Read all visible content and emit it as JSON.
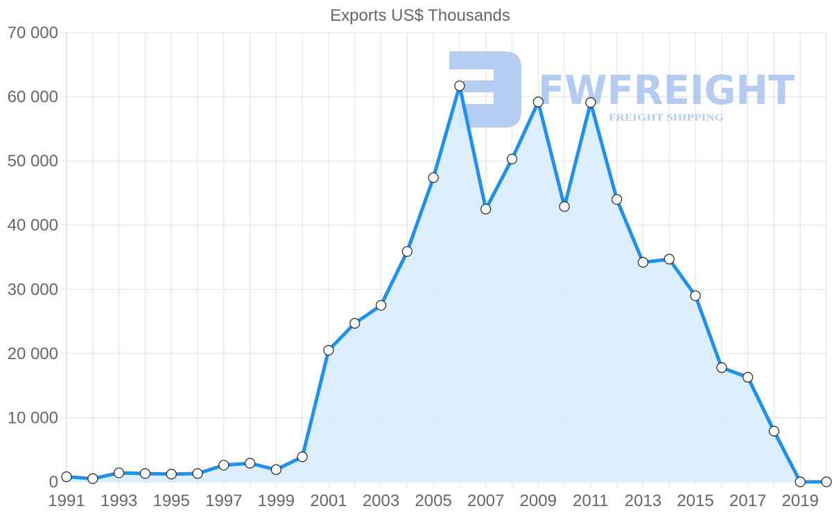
{
  "chart_data": {
    "type": "area",
    "title": "Exports US$ Thousands",
    "xlabel": "",
    "ylabel": "",
    "ylim": [
      0,
      70000
    ],
    "yticks": [
      0,
      10000,
      20000,
      30000,
      40000,
      50000,
      60000,
      70000
    ],
    "ytick_labels": [
      "0",
      "10 000",
      "20 000",
      "30 000",
      "40 000",
      "50 000",
      "60 000",
      "70 000"
    ],
    "xtick_labels": [
      "1991",
      "1993",
      "1995",
      "1997",
      "1999",
      "2001",
      "2003",
      "2005",
      "2007",
      "2009",
      "2011",
      "2013",
      "2015",
      "2017",
      "2019"
    ],
    "grid": true,
    "legend": null,
    "categories": [
      "1991",
      "1992",
      "1993",
      "1994",
      "1995",
      "1996",
      "1997",
      "1998",
      "1999",
      "2000",
      "2001",
      "2002",
      "2003",
      "2004",
      "2005",
      "2006",
      "2007",
      "2008",
      "2009",
      "2010",
      "2011",
      "2012",
      "2013",
      "2014",
      "2015",
      "2016",
      "2017",
      "2018",
      "2019",
      "2020"
    ],
    "series": [
      {
        "name": "Exports",
        "values": [
          800,
          500,
          1400,
          1300,
          1200,
          1300,
          2600,
          2900,
          1900,
          3900,
          20500,
          24700,
          27500,
          35900,
          47400,
          61700,
          42500,
          50300,
          59200,
          42900,
          59100,
          44000,
          34200,
          34700,
          29000,
          17800,
          16300,
          7900,
          0,
          0
        ]
      }
    ],
    "colors": {
      "line": "#1e90f0",
      "fill": "#d8ecfc",
      "marker_fill": "#ffffff",
      "marker_stroke": "#222222",
      "grid": "#e1e1e1",
      "text": "#666666"
    }
  },
  "watermark": {
    "brand": "FWFREIGHT",
    "tagline": "FREIGHT SHIPPING",
    "color": "#a9c4f0"
  }
}
